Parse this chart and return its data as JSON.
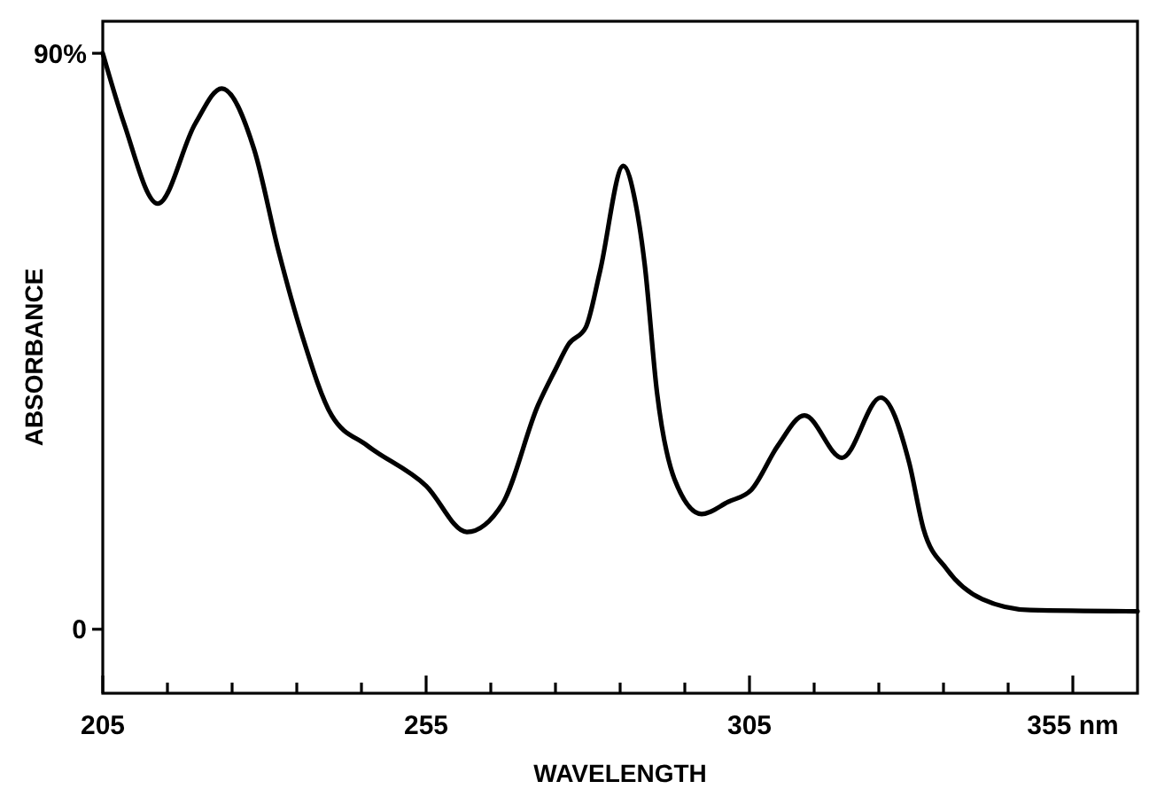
{
  "chart_data": {
    "type": "line",
    "xlabel": "WAVELENGTH",
    "ylabel": "ABSORBANCE",
    "xlim": [
      205,
      365
    ],
    "ylim": [
      -10,
      95
    ],
    "xticks": [
      205,
      {
        "value": 215,
        "label": null
      },
      {
        "value": 225,
        "label": null
      },
      {
        "value": 235,
        "label": null
      },
      {
        "value": 245,
        "label": null
      },
      255,
      {
        "value": 265,
        "label": null
      },
      {
        "value": 275,
        "label": null
      },
      {
        "value": 285,
        "label": null
      },
      {
        "value": 295,
        "label": null
      },
      305,
      {
        "value": 315,
        "label": null
      },
      {
        "value": 325,
        "label": null
      },
      {
        "value": 335,
        "label": null
      },
      {
        "value": 345,
        "label": null
      },
      {
        "value": 355,
        "label": "355 nm"
      }
    ],
    "yticks": [
      0,
      {
        "value": 90,
        "label": "90%"
      }
    ],
    "grid": false,
    "marker": "none",
    "line_style": "solid",
    "series": [
      {
        "color": "#000000",
        "x": [
          205,
          208.3,
          213.5,
          219.3,
          223.4,
          228.4,
          232.2,
          235.8,
          240.4,
          245.9,
          255,
          261.3,
          266.8,
          272.3,
          275,
          277,
          279.7,
          281.9,
          285.5,
          287.4,
          288.8,
          290.7,
          293.5,
          297.6,
          301.7,
          305.3,
          309.4,
          313.5,
          319.3,
          325.3,
          329.7,
          331.9,
          335.5,
          341,
          348.4,
          365
        ],
        "values": [
          90,
          79,
          66.5,
          79,
          84.5,
          75,
          59,
          46,
          33.4,
          28.7,
          22.4,
          15.2,
          19.6,
          35,
          40.6,
          44.5,
          47.2,
          56,
          72.4,
          66.5,
          57,
          37,
          23.2,
          18,
          19.9,
          21.8,
          28.7,
          33.4,
          26.8,
          36.2,
          26,
          15.7,
          9.4,
          4.7,
          3,
          2.8
        ]
      }
    ]
  }
}
